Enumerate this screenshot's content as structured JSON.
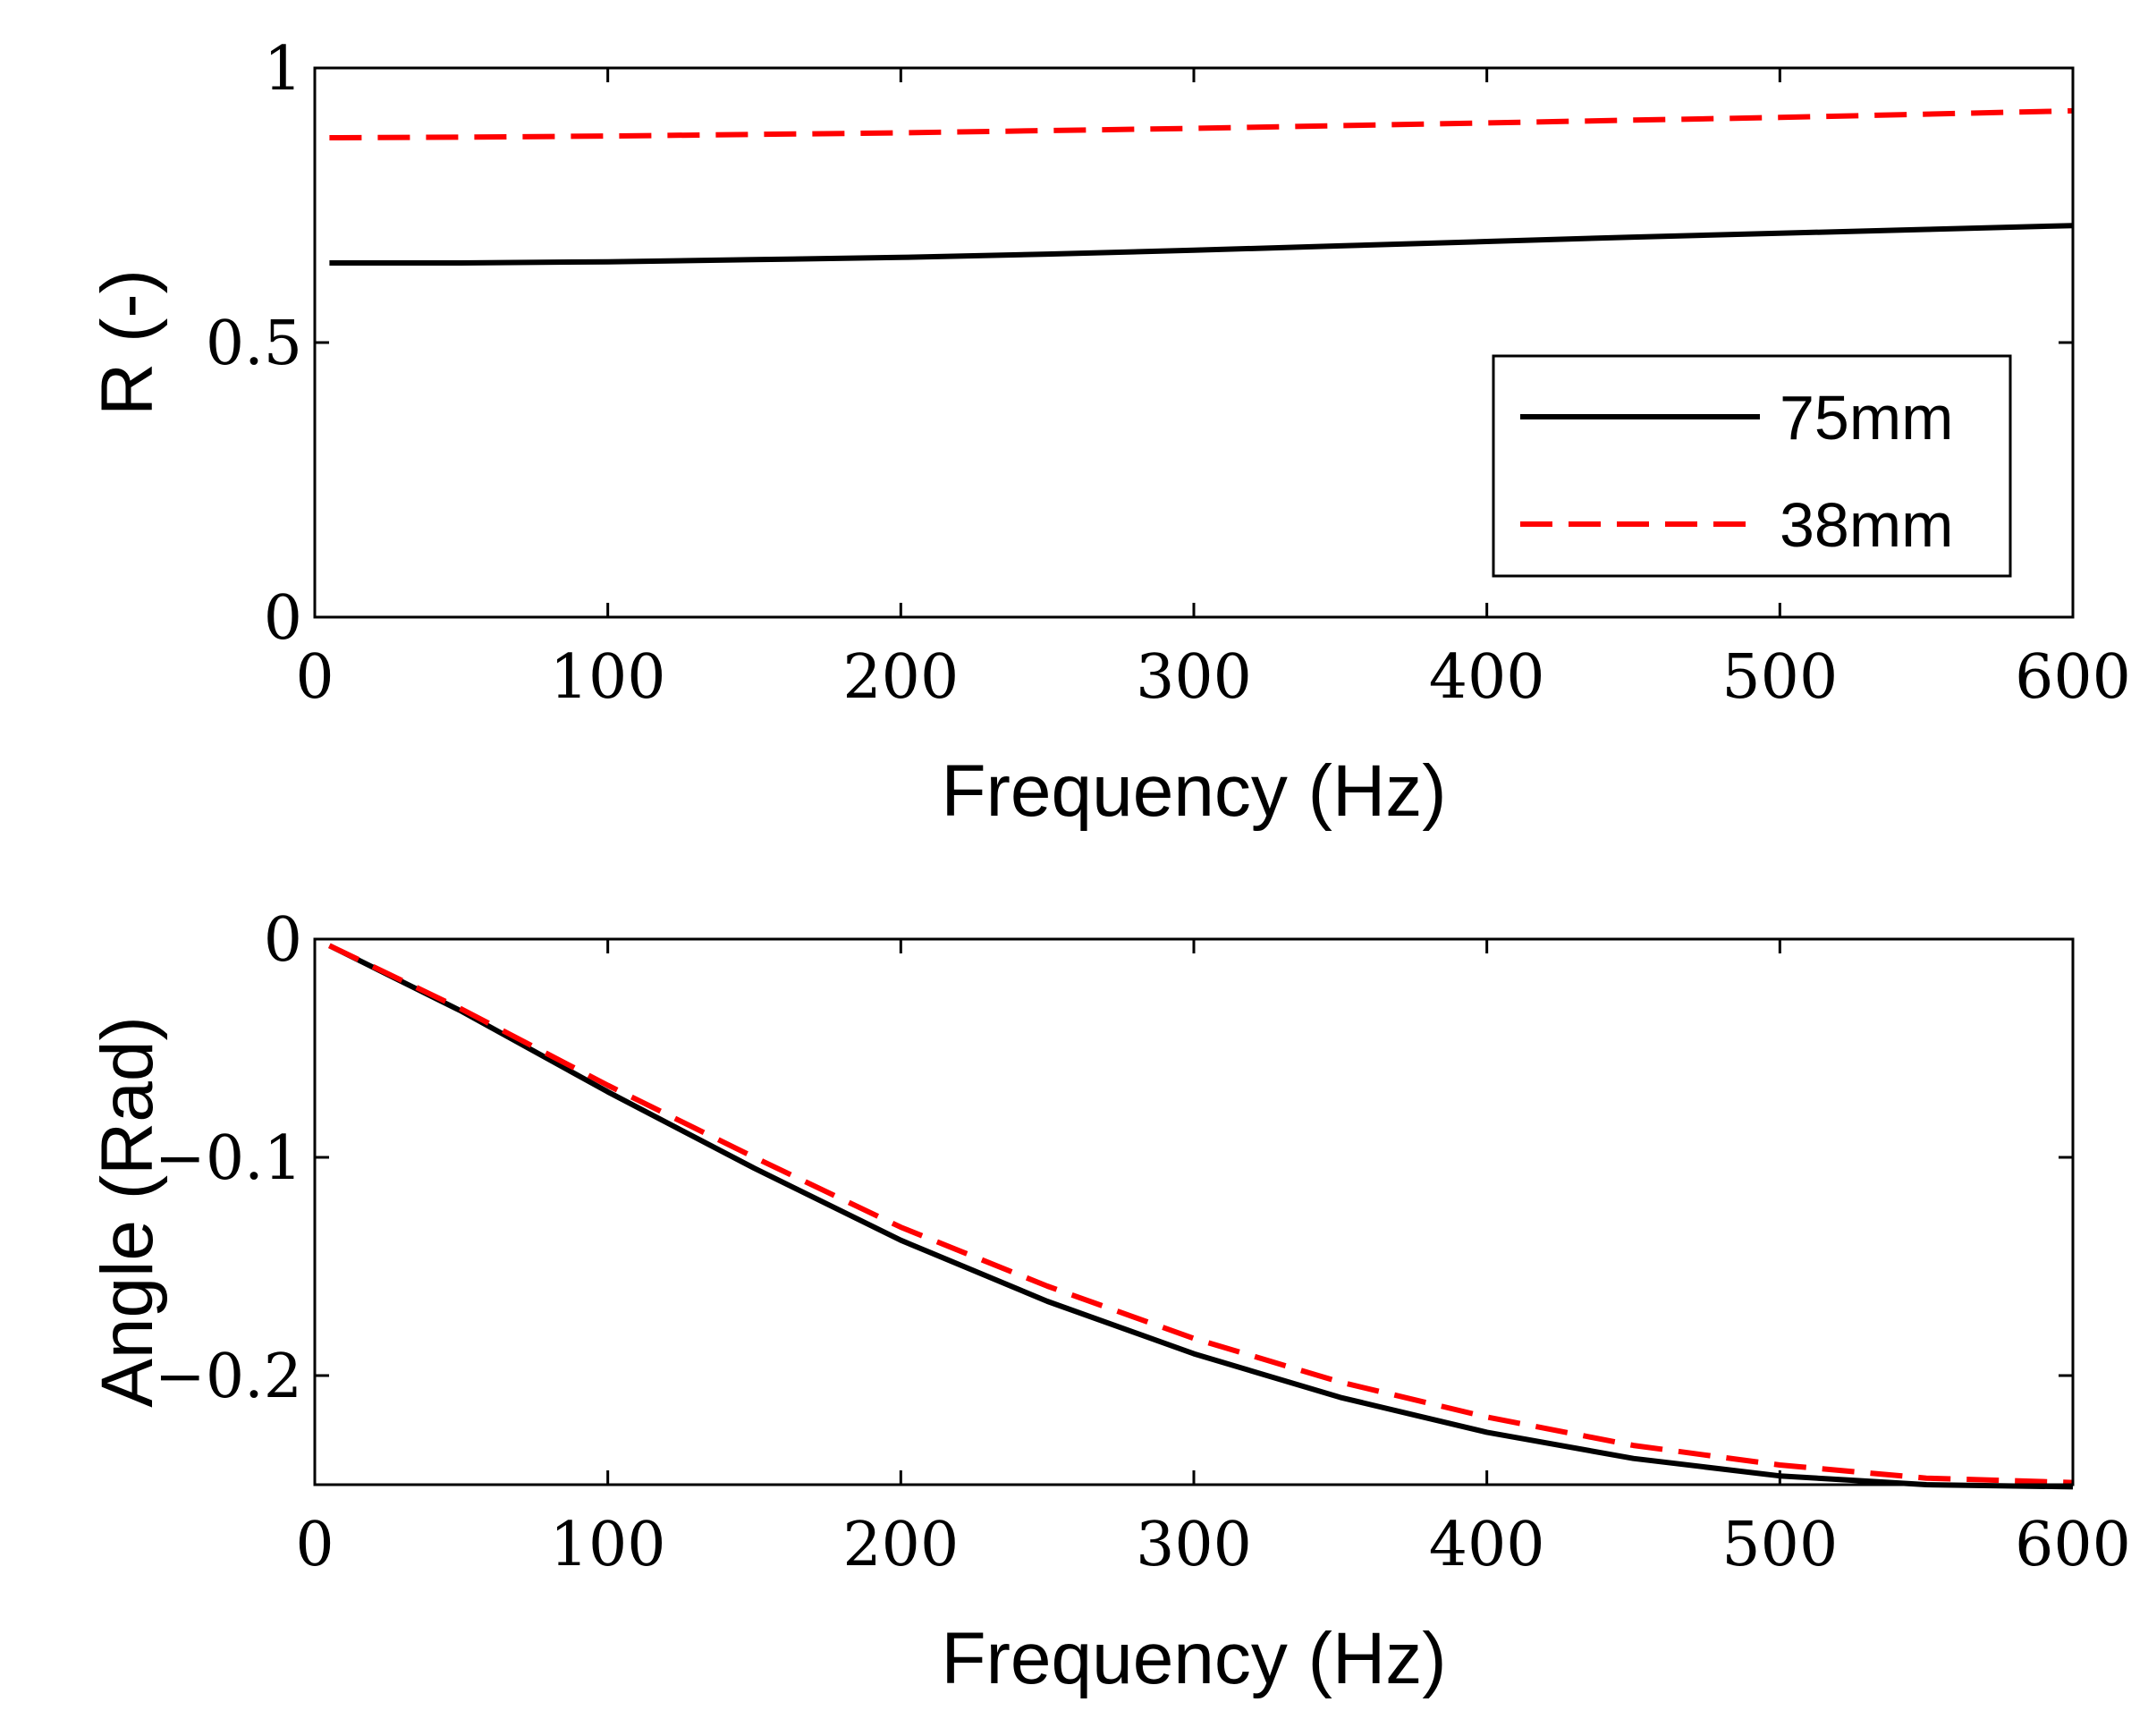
{
  "chart_data": [
    {
      "type": "line",
      "xlabel": "Frequency (Hz)",
      "ylabel": "R (-)",
      "xlim": [
        0,
        600
      ],
      "ylim": [
        0,
        1
      ],
      "xticks": [
        0,
        100,
        200,
        300,
        400,
        500,
        600
      ],
      "xtick_labels": [
        "0",
        "100",
        "200",
        "300",
        "400",
        "500",
        "600"
      ],
      "yticks": [
        0,
        0.5,
        1
      ],
      "ytick_labels": [
        "0",
        "0.5",
        "1"
      ],
      "grid": false,
      "legend": {
        "placement": "bottom-right",
        "entries": [
          "75mm",
          "38mm"
        ]
      },
      "series": [
        {
          "name": "75mm",
          "color": "#000000",
          "style": "solid",
          "x": [
            5,
            50,
            100,
            150,
            200,
            250,
            300,
            350,
            400,
            450,
            500,
            550,
            600
          ],
          "y": [
            0.645,
            0.645,
            0.647,
            0.651,
            0.655,
            0.661,
            0.668,
            0.676,
            0.684,
            0.692,
            0.699,
            0.706,
            0.713
          ]
        },
        {
          "name": "38mm",
          "color": "#ff0000",
          "style": "dashed",
          "x": [
            5,
            50,
            100,
            150,
            200,
            250,
            300,
            350,
            400,
            450,
            500,
            550,
            600
          ],
          "y": [
            0.873,
            0.874,
            0.876,
            0.879,
            0.882,
            0.886,
            0.89,
            0.895,
            0.9,
            0.905,
            0.91,
            0.916,
            0.922
          ]
        }
      ]
    },
    {
      "type": "line",
      "xlabel": "Frequency (Hz)",
      "ylabel": "Angle (Rad)",
      "xlim": [
        0,
        600
      ],
      "ylim": [
        -0.25,
        0
      ],
      "xticks": [
        0,
        100,
        200,
        300,
        400,
        500,
        600
      ],
      "xtick_labels": [
        "0",
        "100",
        "200",
        "300",
        "400",
        "500",
        "600"
      ],
      "yticks": [
        0,
        -0.1,
        -0.2
      ],
      "ytick_labels": [
        "0",
        "−0.1",
        "−0.2"
      ],
      "grid": false,
      "series": [
        {
          "name": "75mm",
          "color": "#000000",
          "style": "solid",
          "x": [
            5,
            50,
            100,
            150,
            200,
            250,
            300,
            350,
            400,
            450,
            500,
            550,
            600
          ],
          "y": [
            -0.003,
            -0.033,
            -0.07,
            -0.105,
            -0.138,
            -0.166,
            -0.19,
            -0.21,
            -0.226,
            -0.238,
            -0.246,
            -0.25,
            -0.251
          ]
        },
        {
          "name": "38mm",
          "color": "#ff0000",
          "style": "dashed",
          "x": [
            5,
            50,
            100,
            150,
            200,
            250,
            300,
            350,
            400,
            450,
            500,
            550,
            600
          ],
          "y": [
            -0.003,
            -0.032,
            -0.067,
            -0.1,
            -0.132,
            -0.159,
            -0.183,
            -0.203,
            -0.219,
            -0.232,
            -0.241,
            -0.247,
            -0.249
          ]
        }
      ]
    }
  ]
}
